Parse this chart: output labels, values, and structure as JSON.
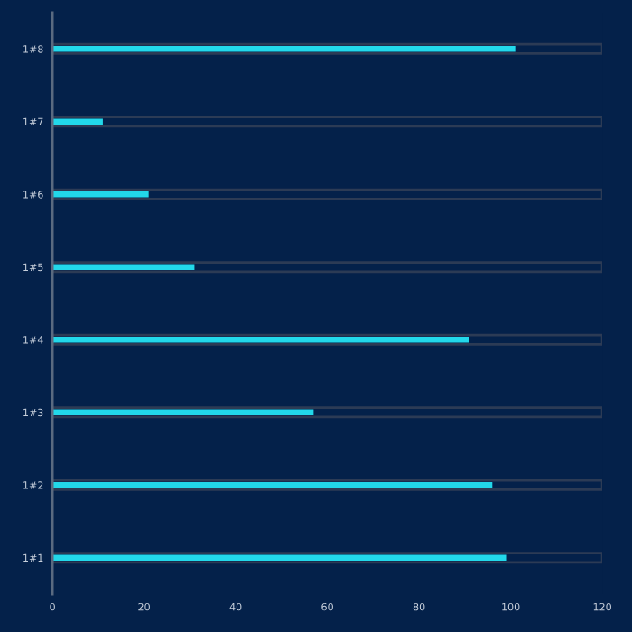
{
  "chart_data": {
    "type": "bar",
    "orientation": "horizontal",
    "categories": [
      "1#8",
      "1#7",
      "1#6",
      "1#5",
      "1#4",
      "1#3",
      "1#2",
      "1#1"
    ],
    "series": [
      {
        "color": "#2c3b55",
        "values": [
          120,
          120,
          120,
          120,
          120,
          120,
          120,
          120
        ]
      },
      {
        "color": "#22d8ea",
        "values": [
          101,
          11,
          21,
          31,
          91,
          57,
          96,
          99
        ]
      }
    ],
    "xlim": [
      0,
      120
    ],
    "xticks": [
      0,
      20,
      40,
      60,
      80,
      100,
      120
    ],
    "grid": false
  }
}
